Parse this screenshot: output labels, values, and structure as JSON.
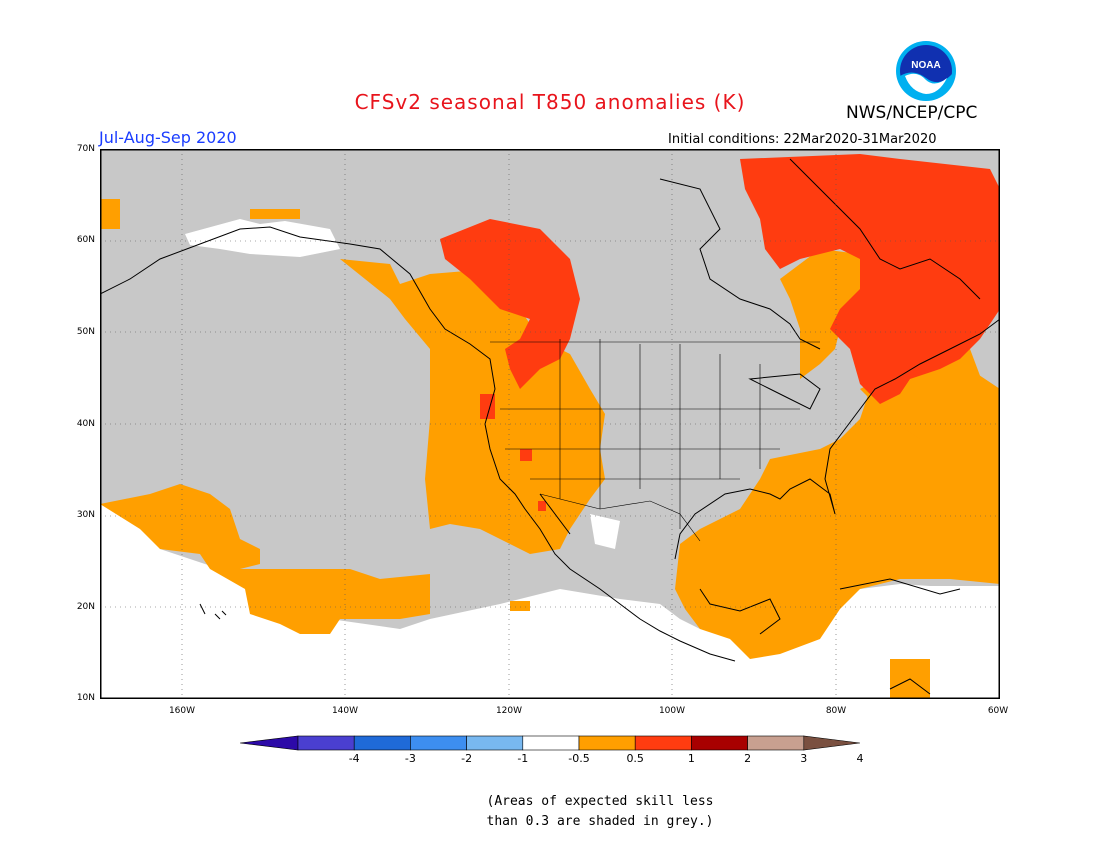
{
  "title": "CFSv2 seasonal T850 anomalies (K)",
  "period": "Jul-Aug-Sep 2020",
  "agency": "NWS/NCEP/CPC",
  "logo_text": "NOAA",
  "initial_conditions": "Initial conditions: 22Mar2020-31Mar2020",
  "lat_labels": [
    "70N",
    "60N",
    "50N",
    "40N",
    "30N",
    "20N",
    "10N"
  ],
  "lon_labels": [
    "160W",
    "140W",
    "120W",
    "100W",
    "80W",
    "60W"
  ],
  "colorbar": {
    "labels": [
      "-4",
      "-3",
      "-2",
      "-1",
      "-0.5",
      "0.5",
      "1",
      "2",
      "3",
      "4"
    ],
    "colors": [
      "#2c0aa8",
      "#4a3fd0",
      "#1f6ad8",
      "#3d8ef0",
      "#78b8f0",
      "#ffffff",
      "#ff9f00",
      "#ff3c10",
      "#a80000",
      "#c8a090",
      "#7a5040"
    ]
  },
  "note_line1": "(Areas of expected skill less",
  "note_line2": "than 0.3 are shaded in grey.)",
  "colors": {
    "grey": "#c8c8c8",
    "orange": "#ff9f00",
    "red": "#ff3c10"
  }
}
